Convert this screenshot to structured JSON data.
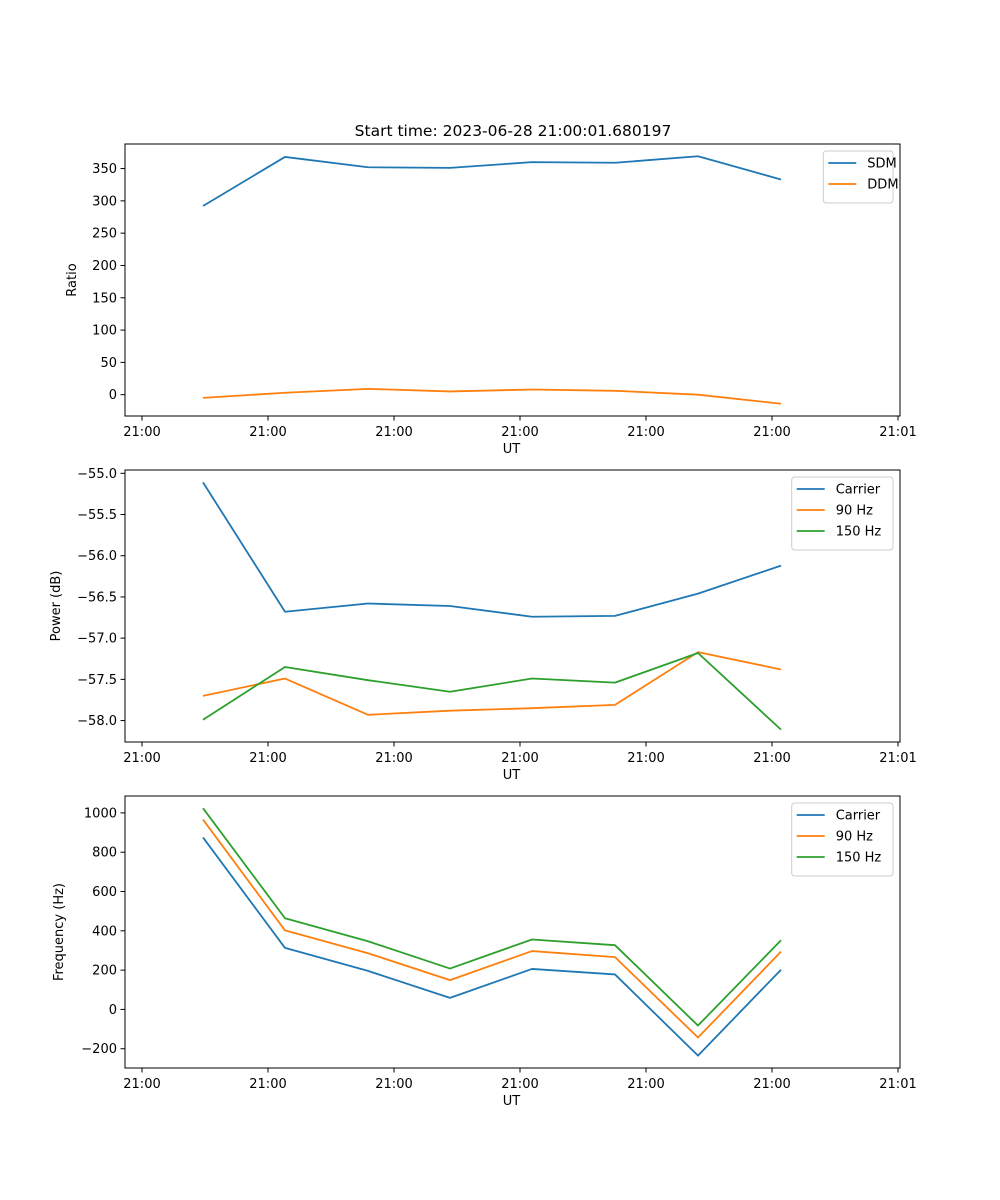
{
  "figure": {
    "title": "Start time: 2023-06-28 21:00:01.680197"
  },
  "chart_data": [
    {
      "type": "line",
      "title": "Start time: 2023-06-28 21:00:01.680197",
      "xlabel": "UT",
      "ylabel": "Ratio",
      "x_tick_labels": [
        "21:00",
        "21:00",
        "21:00",
        "21:00",
        "21:00",
        "21:00",
        "21:01"
      ],
      "y_ticks": [
        0,
        50,
        100,
        150,
        200,
        250,
        300,
        350
      ],
      "ylim": [
        -33,
        388
      ],
      "legend_position": "top-right",
      "series": [
        {
          "name": "SDM",
          "color": "#1f77b4",
          "values": [
            292,
            368,
            352,
            351,
            360,
            359,
            369,
            333
          ]
        },
        {
          "name": "DDM",
          "color": "#ff7f0e",
          "values": [
            -5,
            3,
            9,
            5,
            8,
            6,
            0,
            -14
          ]
        }
      ]
    },
    {
      "type": "line",
      "xlabel": "UT",
      "ylabel": "Power (dB)",
      "x_tick_labels": [
        "21:00",
        "21:00",
        "21:00",
        "21:00",
        "21:00",
        "21:00",
        "21:01"
      ],
      "y_ticks": [
        -58.0,
        -57.5,
        -57.0,
        -56.5,
        -56.0,
        -55.5,
        -55.0
      ],
      "y_tick_labels": [
        "−58.0",
        "−57.5",
        "−57.0",
        "−56.5",
        "−56.0",
        "−55.5",
        "−55.0"
      ],
      "ylim": [
        -58.26,
        -54.96
      ],
      "legend_position": "top-right",
      "series": [
        {
          "name": "Carrier",
          "color": "#1f77b4",
          "values": [
            -55.11,
            -56.68,
            -56.58,
            -56.61,
            -56.74,
            -56.73,
            -56.46,
            -56.12
          ]
        },
        {
          "name": "90 Hz",
          "color": "#ff7f0e",
          "values": [
            -57.7,
            -57.49,
            -57.93,
            -57.88,
            -57.85,
            -57.81,
            -57.17,
            -57.38
          ]
        },
        {
          "name": "150 Hz",
          "color": "#2ca02c",
          "values": [
            -57.99,
            -57.35,
            -57.51,
            -57.65,
            -57.49,
            -57.54,
            -57.18,
            -58.11
          ]
        }
      ]
    },
    {
      "type": "line",
      "xlabel": "UT",
      "ylabel": "Frequency (Hz)",
      "x_tick_labels": [
        "21:00",
        "21:00",
        "21:00",
        "21:00",
        "21:00",
        "21:00",
        "21:01"
      ],
      "y_ticks": [
        -200,
        0,
        200,
        400,
        600,
        800,
        1000
      ],
      "y_tick_labels": [
        "−200",
        "0",
        "200",
        "400",
        "600",
        "800",
        "1000"
      ],
      "ylim": [
        -298,
        1086
      ],
      "legend_position": "top-right",
      "series": [
        {
          "name": "Carrier",
          "color": "#1f77b4",
          "values": [
            875,
            313,
            196,
            59,
            206,
            178,
            -235,
            202
          ]
        },
        {
          "name": "90 Hz",
          "color": "#ff7f0e",
          "values": [
            966,
            402,
            286,
            149,
            297,
            266,
            -143,
            294
          ]
        },
        {
          "name": "150 Hz",
          "color": "#2ca02c",
          "values": [
            1024,
            464,
            347,
            208,
            356,
            327,
            -82,
            352
          ]
        }
      ]
    }
  ]
}
